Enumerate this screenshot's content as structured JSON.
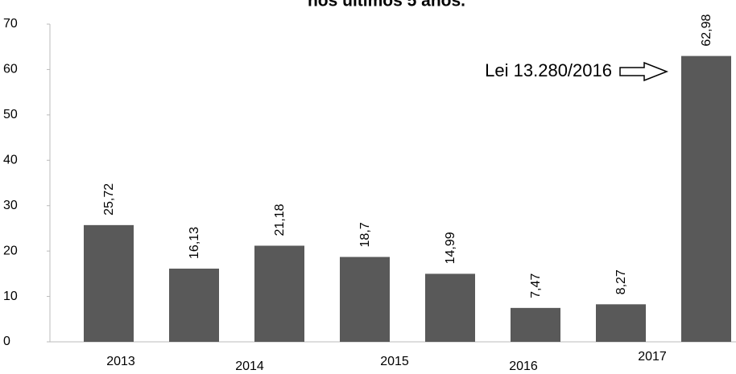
{
  "chart_data": {
    "type": "bar",
    "title": "nos últimos 5 anos.",
    "categories": [
      null,
      null,
      null,
      null,
      null,
      null,
      null,
      null
    ],
    "values": [
      25.72,
      16.13,
      21.18,
      18.7,
      14.99,
      7.47,
      8.27,
      62.98
    ],
    "value_labels": [
      "25,72",
      "16,13",
      "21,18",
      "18,7",
      "14,99",
      "7,47",
      "8,27",
      "62,98"
    ],
    "x_labels": [
      "2013",
      "2014",
      "2015",
      "2016",
      "2017"
    ],
    "annotation": "Lei 13.280/2016",
    "color": "#595959",
    "ylim": [
      0,
      70
    ],
    "yticks": [
      0,
      10,
      20,
      30,
      40,
      50,
      60,
      70
    ],
    "grid": false
  }
}
